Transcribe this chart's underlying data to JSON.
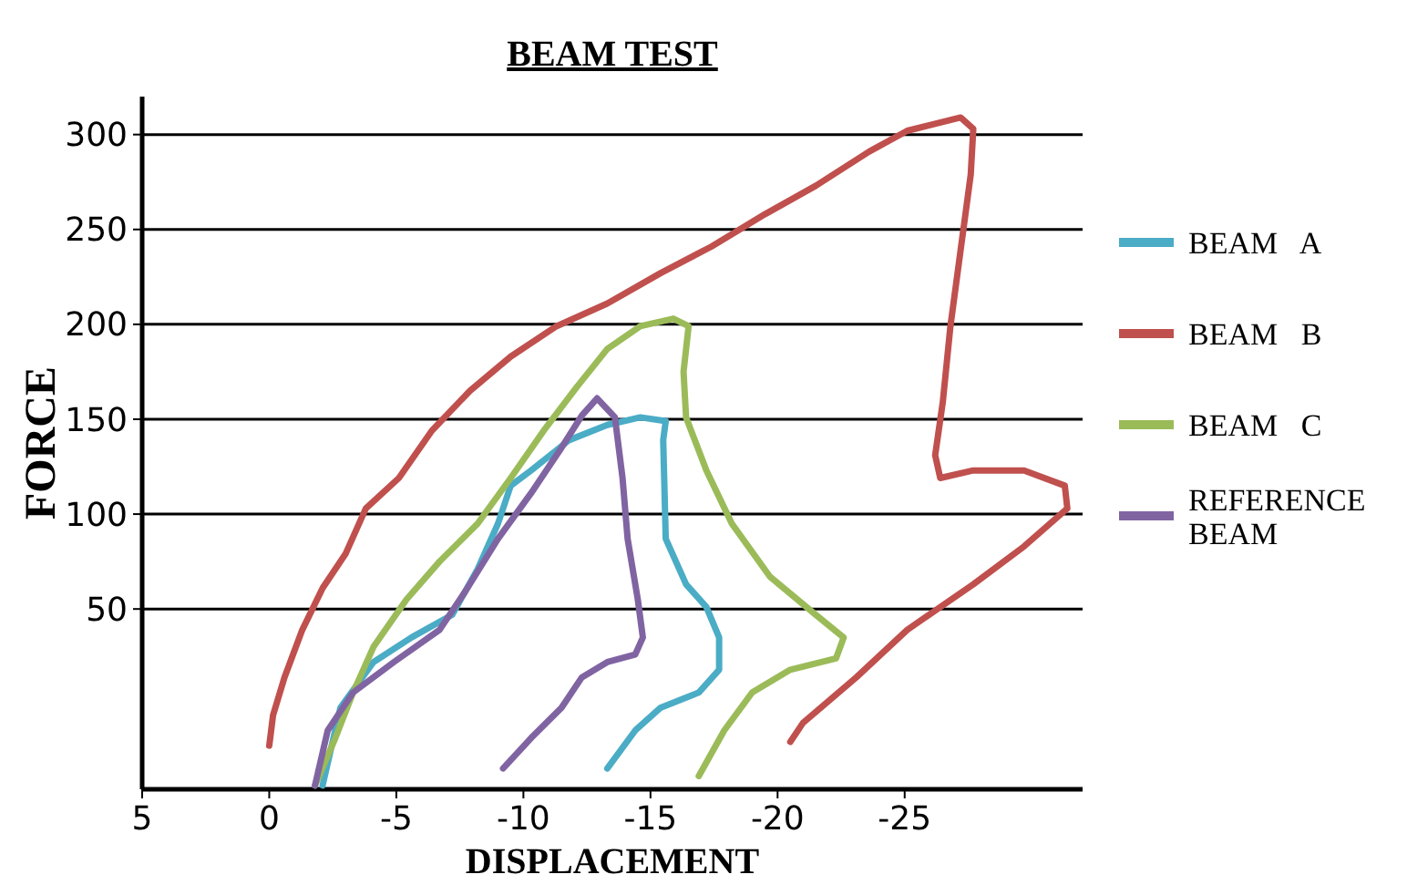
{
  "chart_data": {
    "type": "line",
    "title": "BEAM TEST",
    "xlabel": "DISPLACEMENT",
    "ylabel": "FORCE",
    "xlim": [
      5,
      -32
    ],
    "xticks": [
      5,
      0,
      -5,
      -10,
      -15,
      -20,
      -25
    ],
    "ylim": [
      -45,
      320
    ],
    "yticks": [
      50,
      100,
      150,
      200,
      250,
      300
    ],
    "grid": "y",
    "legend": "right",
    "marker": "none",
    "line_style": "solid",
    "series": [
      {
        "name": "BEAM   A",
        "color": "#4bacc6",
        "x": [
          -2.1,
          -2.8,
          -4.1,
          -5.6,
          -7.2,
          -8.2,
          -9.0,
          -9.5,
          -10.3,
          -11.8,
          -13.3,
          -14.6,
          -15.6,
          -15.5,
          -15.6,
          -16.4,
          -17.2,
          -17.7,
          -17.7,
          -16.9,
          -15.4,
          -14.4,
          -13.3
        ],
        "values": [
          -43,
          -2,
          22,
          35,
          47,
          71,
          95,
          115,
          123,
          139,
          147,
          151,
          149,
          139,
          87,
          63,
          51,
          35,
          18,
          6,
          -2,
          -14,
          -34
        ]
      },
      {
        "name": "BEAM   B",
        "color": "#c0504d",
        "x": [
          0,
          -0.15,
          -0.6,
          -1.3,
          -2.1,
          -3.0,
          -3.8,
          -5.1,
          -6.4,
          -7.9,
          -9.5,
          -11.3,
          -13.3,
          -15.4,
          -17.4,
          -19.5,
          -21.5,
          -23.6,
          -25.1,
          -27.2,
          -27.7,
          -27.6,
          -27.2,
          -26.8,
          -26.5,
          -26.2,
          -26.4,
          -27.7,
          -29.7,
          -31.3,
          -31.4,
          -29.7,
          -27.7,
          -25.1,
          -23.1,
          -21.0,
          -20.5
        ],
        "values": [
          -22,
          -6,
          14,
          39,
          61,
          79,
          103,
          119,
          144,
          165,
          183,
          199,
          211,
          227,
          241,
          258,
          273,
          291,
          302,
          309,
          303,
          279,
          239,
          199,
          159,
          131,
          119,
          123,
          123,
          115,
          103,
          83,
          63,
          39,
          14,
          -10,
          -20
        ]
      },
      {
        "name": "BEAM   C",
        "color": "#9bbb59",
        "x": [
          -1.8,
          -2.6,
          -3.3,
          -4.1,
          -5.4,
          -6.7,
          -8.2,
          -9.5,
          -10.8,
          -12.1,
          -13.3,
          -14.6,
          -15.9,
          -16.5,
          -16.3,
          -16.4,
          -17.2,
          -18.2,
          -19.7,
          -21.5,
          -22.6,
          -22.3,
          -20.5,
          -19.0,
          -17.9,
          -16.9
        ],
        "values": [
          -43,
          -18,
          6,
          30,
          55,
          75,
          95,
          119,
          144,
          167,
          187,
          199,
          203,
          199,
          175,
          151,
          123,
          95,
          67,
          47,
          35,
          24,
          18,
          6,
          -14,
          -38
        ]
      },
      {
        "name": "REFERENCE BEAM",
        "color": "#8064a2",
        "x": [
          -1.8,
          -2.3,
          -3.3,
          -4.9,
          -6.7,
          -7.7,
          -9.0,
          -10.3,
          -11.5,
          -12.3,
          -12.9,
          -13.6,
          -13.9,
          -14.1,
          -14.5,
          -14.7,
          -14.4,
          -13.3,
          -12.3,
          -11.5,
          -10.3,
          -9.2
        ],
        "values": [
          -43,
          -14,
          6,
          22,
          39,
          59,
          87,
          111,
          135,
          152,
          161,
          151,
          119,
          87,
          55,
          35,
          26,
          22,
          14,
          -2,
          -18,
          -34
        ]
      }
    ]
  }
}
